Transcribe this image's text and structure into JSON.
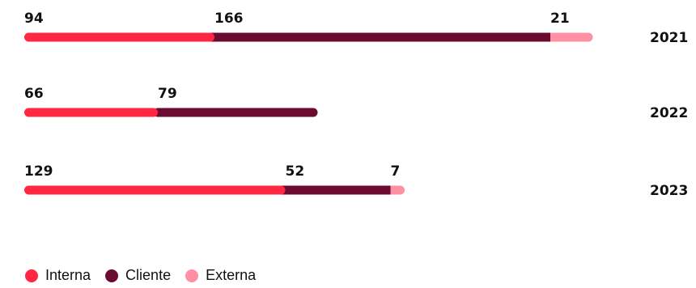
{
  "chart_data": {
    "type": "bar",
    "orientation": "horizontal",
    "stacked": true,
    "categories": [
      "2021",
      "2022",
      "2023"
    ],
    "series": [
      {
        "name": "Interna",
        "color": "#ff2741",
        "values": [
          94,
          66,
          129
        ]
      },
      {
        "name": "Cliente",
        "color": "#6b0b2f",
        "values": [
          166,
          79,
          52
        ]
      },
      {
        "name": "Externa",
        "color": "#ff8fa3",
        "values": [
          21,
          null,
          7
        ]
      }
    ],
    "legend_position": "bottom-left",
    "grid": false
  }
}
